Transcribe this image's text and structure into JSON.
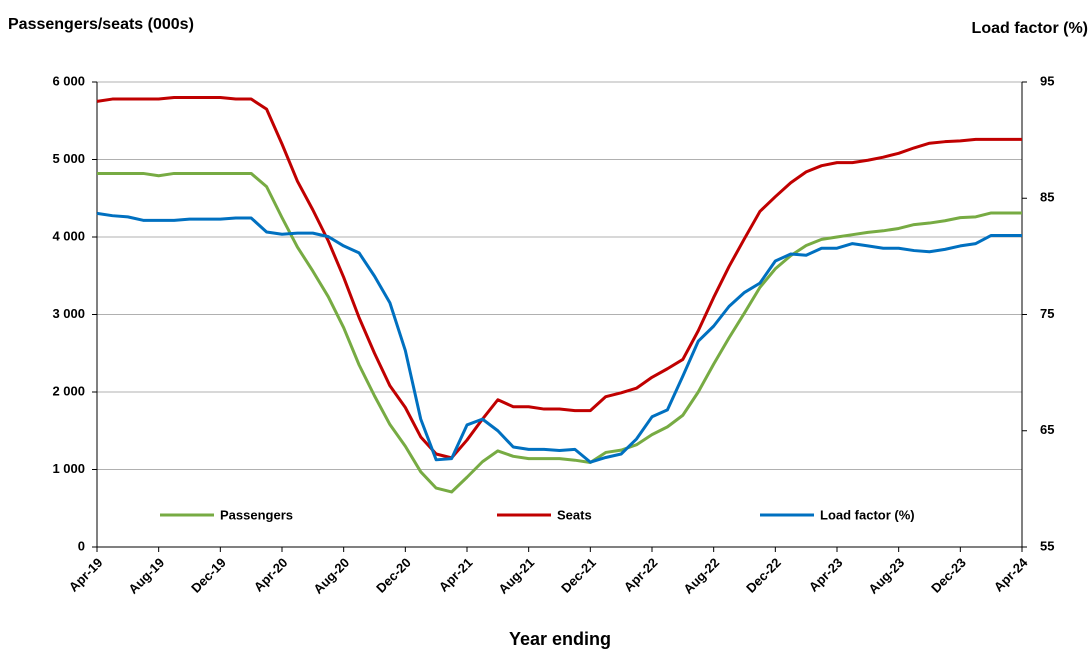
{
  "chart_data": {
    "type": "line",
    "y_title": "Passengers/seats (000s)",
    "y2_title": "Load factor (%)",
    "x_title": "Year ending",
    "categories": [
      "Apr-19",
      null,
      null,
      null,
      "Aug-19",
      null,
      null,
      null,
      "Dec-19",
      null,
      null,
      null,
      "Apr-20",
      null,
      null,
      null,
      "Aug-20",
      null,
      null,
      null,
      "Dec-20",
      null,
      null,
      null,
      "Apr-21",
      null,
      null,
      null,
      "Aug-21",
      null,
      null,
      null,
      "Dec-21",
      null,
      null,
      null,
      "Apr-22",
      null,
      null,
      null,
      "Aug-22",
      null,
      null,
      null,
      "Dec-22",
      null,
      null,
      null,
      "Apr-23",
      null,
      null,
      null,
      "Aug-23",
      null,
      null,
      null,
      "Dec-23",
      null,
      null,
      null,
      "Apr-24"
    ],
    "series": [
      {
        "name": "Passengers",
        "color": "#77ab43",
        "values": [
          4820,
          4820,
          4820,
          4820,
          4790,
          4820,
          4820,
          4820,
          4820,
          4820,
          4820,
          4650,
          4250,
          3870,
          3560,
          3230,
          2830,
          2350,
          1950,
          1580,
          1300,
          970,
          760,
          710,
          900,
          1100,
          1240,
          1170,
          1140,
          1140,
          1140,
          1120,
          1090,
          1220,
          1250,
          1320,
          1450,
          1550,
          1700,
          2000,
          2360,
          2700,
          3020,
          3350,
          3590,
          3760,
          3890,
          3970,
          4000,
          4030,
          4060,
          4080,
          4110,
          4160,
          4180,
          4210,
          4250,
          4260,
          4310,
          4310,
          4310
        ]
      },
      {
        "name": "Seats",
        "color": "#c00000",
        "values": [
          5750,
          5780,
          5780,
          5780,
          5780,
          5800,
          5800,
          5800,
          5800,
          5780,
          5780,
          5650,
          5200,
          4720,
          4350,
          3950,
          3480,
          2960,
          2500,
          2080,
          1800,
          1420,
          1200,
          1150,
          1380,
          1650,
          1900,
          1810,
          1810,
          1780,
          1780,
          1760,
          1760,
          1940,
          1990,
          2050,
          2190,
          2300,
          2420,
          2790,
          3220,
          3620,
          3980,
          4330,
          4520,
          4700,
          4840,
          4920,
          4960,
          4960,
          4990,
          5030,
          5080,
          5150,
          5210,
          5230,
          5240,
          5260,
          5260,
          5260,
          5260
        ]
      },
      {
        "name": "Load factor (%)",
        "color": "#0070c0",
        "axis": "y2",
        "values": [
          83.7,
          83.5,
          83.4,
          83.1,
          83.1,
          83.1,
          83.2,
          83.2,
          83.2,
          83.3,
          83.3,
          82.1,
          81.9,
          82.0,
          82.0,
          81.7,
          80.9,
          80.3,
          78.3,
          76.0,
          71.9,
          66.0,
          62.5,
          62.6,
          65.5,
          66.0,
          65.0,
          63.6,
          63.4,
          63.4,
          63.3,
          63.4,
          62.3,
          62.7,
          63.0,
          64.3,
          66.2,
          66.8,
          69.7,
          72.7,
          74.0,
          75.7,
          76.9,
          77.7,
          79.6,
          80.2,
          80.1,
          80.7,
          80.7,
          81.1,
          80.9,
          80.7,
          80.7,
          80.5,
          80.4,
          80.6,
          80.9,
          81.1,
          81.8,
          81.8,
          81.8
        ]
      }
    ],
    "ylim": [
      0,
      6000
    ],
    "yticks": [
      0,
      {
        "value": 1000,
        "label": "1 000"
      },
      {
        "value": 2000,
        "label": "2 000"
      },
      {
        "value": 3000,
        "label": "3 000"
      },
      {
        "value": 4000,
        "label": "4 000"
      },
      {
        "value": 5000,
        "label": "5 000"
      },
      {
        "value": 6000,
        "label": "6 000"
      }
    ],
    "y2lim": [
      55,
      95
    ],
    "y2ticks": [
      55,
      65,
      75,
      85,
      95
    ],
    "grid": true,
    "legend": "bottom"
  }
}
